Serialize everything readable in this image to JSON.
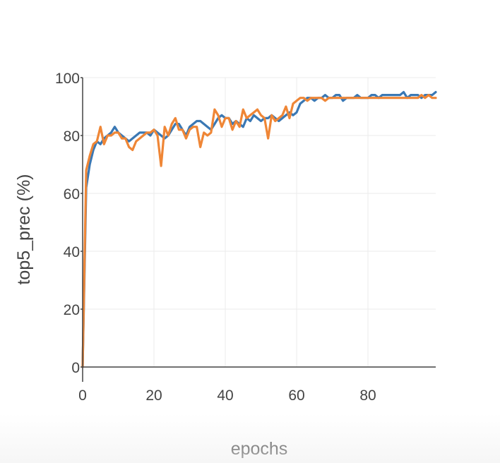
{
  "chart_data": {
    "type": "line",
    "xlabel": "epochs",
    "ylabel": "top5_prec (%)",
    "xlim": [
      0,
      99
    ],
    "ylim": [
      0,
      100
    ],
    "x_ticks": [
      0,
      20,
      40,
      60,
      80
    ],
    "y_ticks": [
      0,
      20,
      40,
      60,
      80,
      100
    ],
    "grid": true,
    "x": [
      0,
      1,
      2,
      3,
      4,
      5,
      6,
      7,
      8,
      9,
      10,
      11,
      12,
      13,
      14,
      15,
      16,
      17,
      18,
      19,
      20,
      21,
      22,
      23,
      24,
      25,
      26,
      27,
      28,
      29,
      30,
      31,
      32,
      33,
      34,
      35,
      36,
      37,
      38,
      39,
      40,
      41,
      42,
      43,
      44,
      45,
      46,
      47,
      48,
      49,
      50,
      51,
      52,
      53,
      54,
      55,
      56,
      57,
      58,
      59,
      60,
      61,
      62,
      63,
      64,
      65,
      66,
      67,
      68,
      69,
      70,
      71,
      72,
      73,
      74,
      75,
      76,
      77,
      78,
      79,
      80,
      81,
      82,
      83,
      84,
      85,
      86,
      87,
      88,
      89,
      90,
      91,
      92,
      93,
      94,
      95,
      96,
      97,
      98,
      99
    ],
    "series": [
      {
        "color": "#3a78b4",
        "values": [
          0,
          62,
          70,
          75,
          78,
          77,
          79,
          80,
          81,
          83,
          81,
          80,
          79,
          78,
          79,
          80,
          81,
          81,
          81,
          80,
          82,
          81,
          80,
          79,
          80,
          82,
          84,
          84,
          82,
          80,
          83,
          84,
          85,
          85,
          84,
          83,
          82,
          84,
          86,
          87,
          86,
          86,
          84,
          85,
          84,
          83,
          86,
          85,
          87,
          86,
          85,
          86,
          86,
          87,
          86,
          85,
          86,
          87,
          88,
          87,
          88,
          91,
          92,
          93,
          93,
          92,
          93,
          93,
          94,
          93,
          93,
          94,
          94,
          92,
          93,
          93,
          93,
          94,
          93,
          93,
          93,
          94,
          94,
          93,
          94,
          94,
          94,
          94,
          94,
          94,
          95,
          93,
          94,
          94,
          94,
          93,
          94,
          94,
          94,
          95
        ]
      },
      {
        "color": "#ef8636",
        "values": [
          0,
          68,
          73,
          77,
          78,
          83,
          77,
          80,
          80,
          81,
          81,
          79,
          79,
          76,
          75,
          78,
          79,
          80,
          81,
          81,
          82,
          80,
          69.5,
          83,
          80,
          84,
          86,
          82,
          82,
          79,
          82,
          83,
          83,
          76,
          81,
          80,
          81,
          89,
          87,
          83,
          86,
          86,
          82,
          85,
          83,
          89,
          86,
          87,
          88,
          89,
          87,
          86,
          79,
          87,
          85,
          86,
          87,
          90,
          86,
          91,
          92,
          93,
          93,
          92,
          93,
          93,
          93,
          93,
          92,
          93,
          93,
          93,
          93,
          93,
          93,
          93,
          93,
          93,
          93,
          93,
          93,
          93,
          93,
          93,
          93,
          93,
          93,
          93,
          93,
          93,
          93,
          93,
          93,
          93,
          93,
          94,
          93,
          94,
          93,
          93
        ]
      }
    ]
  }
}
